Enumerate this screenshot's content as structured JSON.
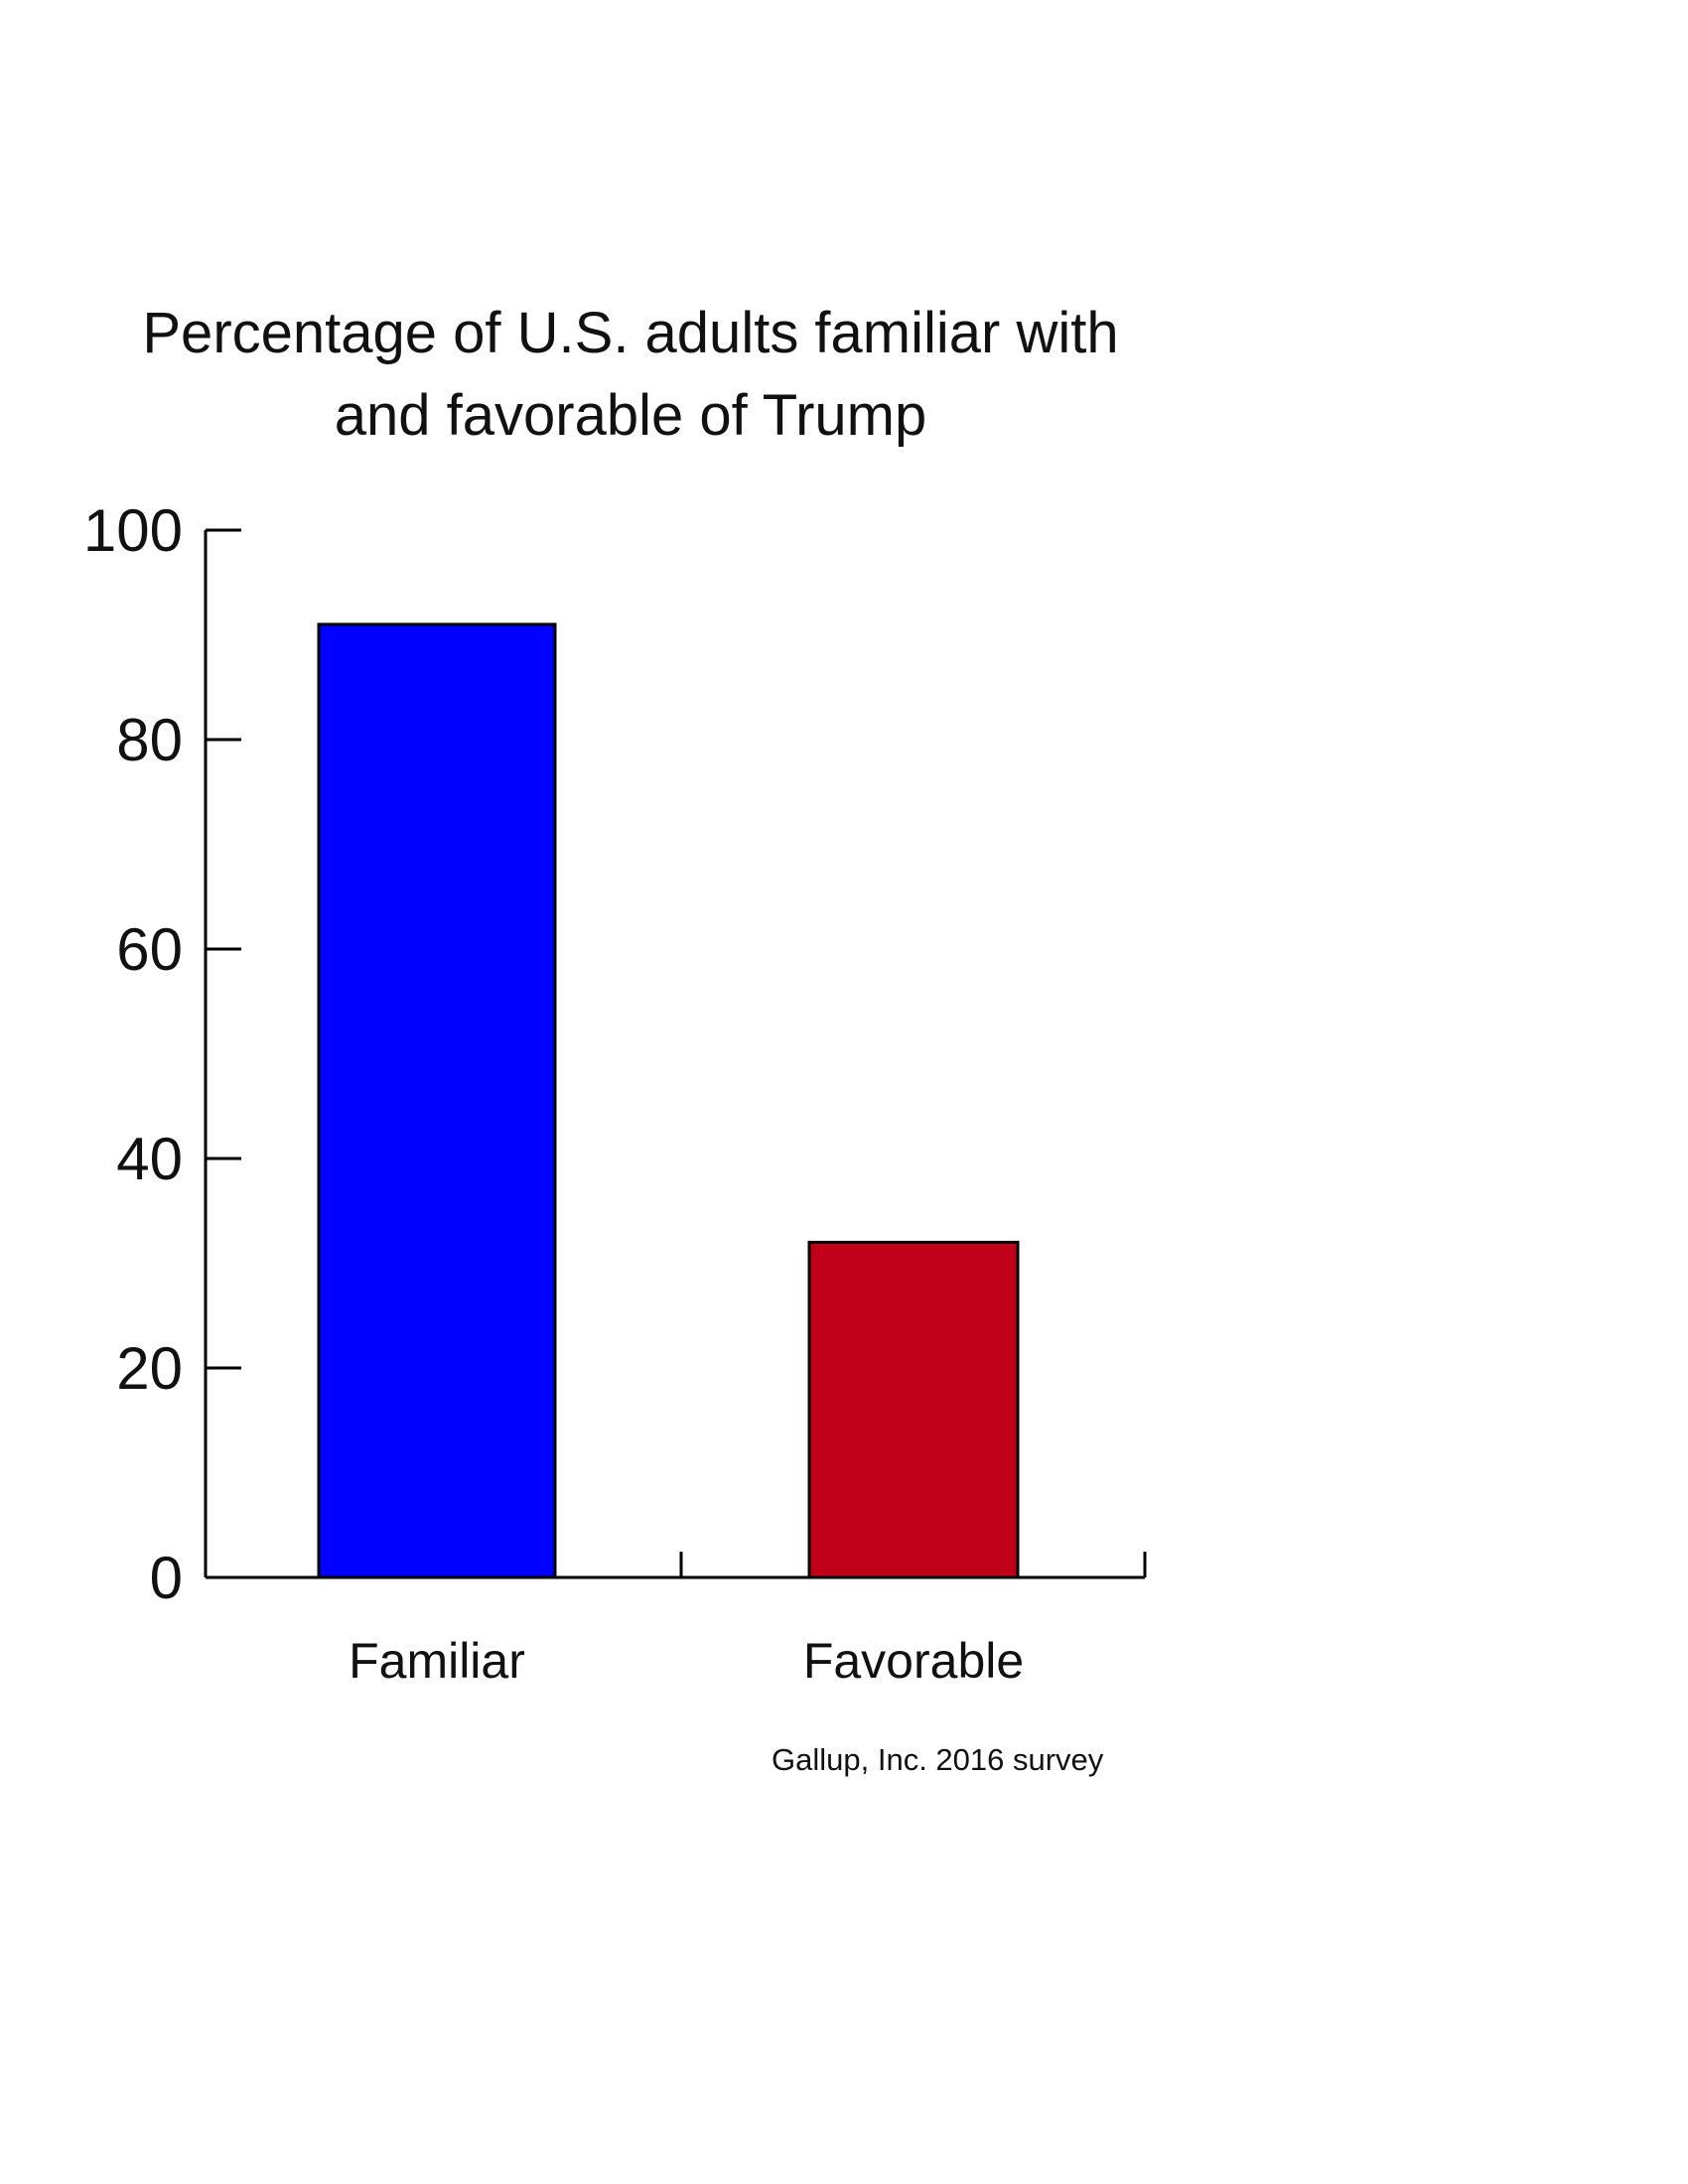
{
  "chart_data": {
    "type": "bar",
    "title_lines": [
      "Percentage of U.S. adults familiar with",
      "and favorable of Trump"
    ],
    "categories": [
      "Familiar",
      "Favorable"
    ],
    "values": [
      91,
      32
    ],
    "colors": [
      "#0000ff",
      "#c00018"
    ],
    "xlabel": "",
    "ylabel": "",
    "ylim": [
      0,
      100
    ],
    "yticks": [
      0,
      20,
      40,
      60,
      80,
      100
    ],
    "grid": false,
    "source": "Gallup, Inc. 2016 survey"
  }
}
